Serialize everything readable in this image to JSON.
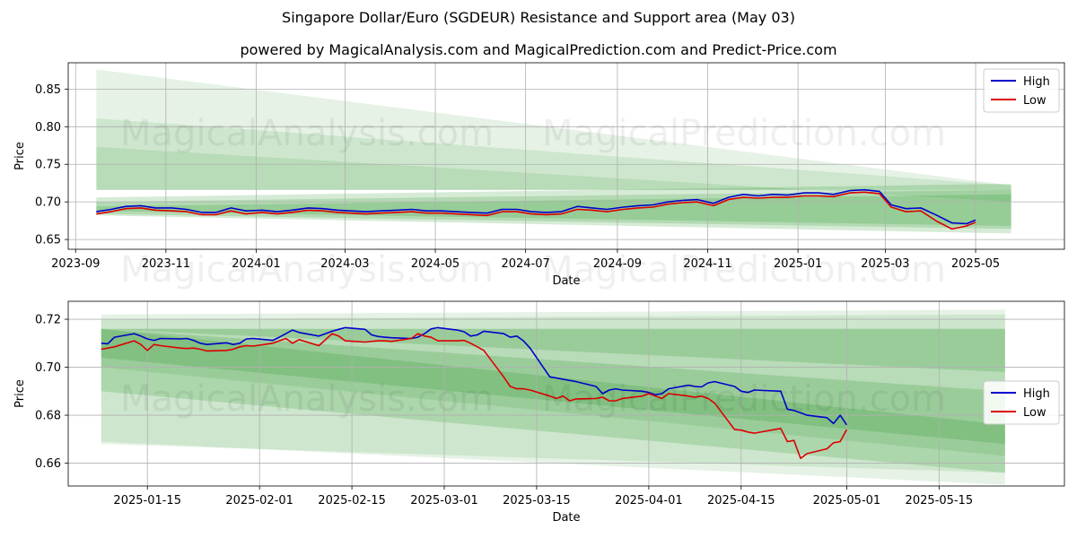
{
  "header": {
    "title": "Singapore Dollar/Euro (SGDEUR) Resistance and Support area (May 03)",
    "subtitle": "powered by MagicalAnalysis.com and MagicalPrediction.com and Predict-Price.com"
  },
  "watermarks": [
    "MagicalAnalysis.com",
    "MagicalPrediction.com"
  ],
  "colors": {
    "high": "#0000cc",
    "low": "#dd0000",
    "band": "#008000"
  },
  "chart_data": [
    {
      "type": "line",
      "xlabel": "Date",
      "ylabel": "Price",
      "x_range": [
        "2023-08-27",
        "2025-06-30"
      ],
      "ylim": [
        0.637,
        0.885
      ],
      "x_ticks": [
        "2023-09",
        "2023-11",
        "2024-01",
        "2024-03",
        "2024-05",
        "2024-07",
        "2024-09",
        "2024-11",
        "2025-01",
        "2025-03",
        "2025-05"
      ],
      "y_ticks": [
        0.65,
        0.7,
        0.75,
        0.8,
        0.85
      ],
      "grid": true,
      "legend": {
        "position": "top-right",
        "entries": [
          "High",
          "Low"
        ]
      },
      "bands": [
        {
          "x": [
            "2023-09-15",
            "2025-05-25"
          ],
          "y_top": [
            0.876,
            0.722
          ],
          "y_bottom": [
            0.716,
            0.716
          ]
        },
        {
          "x": [
            "2023-09-15",
            "2025-05-25"
          ],
          "y_top": [
            0.811,
            0.722
          ],
          "y_bottom": [
            0.716,
            0.716
          ]
        },
        {
          "x": [
            "2023-09-15",
            "2025-05-25"
          ],
          "y_top": [
            0.773,
            0.7
          ],
          "y_bottom": [
            0.716,
            0.716
          ]
        },
        {
          "x": [
            "2023-09-15",
            "2025-05-25"
          ],
          "y_top": [
            0.706,
            0.724
          ],
          "y_bottom": [
            0.682,
            0.658
          ]
        },
        {
          "x": [
            "2023-09-15",
            "2025-05-25"
          ],
          "y_top": [
            0.7,
            0.716
          ],
          "y_bottom": [
            0.684,
            0.664
          ]
        },
        {
          "x": [
            "2023-09-15",
            "2025-05-25"
          ],
          "y_top": [
            0.694,
            0.71
          ],
          "y_bottom": [
            0.688,
            0.668
          ]
        }
      ],
      "series": [
        {
          "name": "High",
          "x": [
            "2023-09-15",
            "2023-09-25",
            "2023-10-05",
            "2023-10-15",
            "2023-10-25",
            "2023-11-05",
            "2023-11-15",
            "2023-11-25",
            "2023-12-05",
            "2023-12-15",
            "2023-12-25",
            "2024-01-05",
            "2024-01-15",
            "2024-01-25",
            "2024-02-05",
            "2024-02-15",
            "2024-02-25",
            "2024-03-05",
            "2024-03-15",
            "2024-03-25",
            "2024-04-05",
            "2024-04-15",
            "2024-04-25",
            "2024-05-05",
            "2024-05-15",
            "2024-05-25",
            "2024-06-05",
            "2024-06-15",
            "2024-06-25",
            "2024-07-05",
            "2024-07-15",
            "2024-07-25",
            "2024-08-05",
            "2024-08-15",
            "2024-08-25",
            "2024-09-05",
            "2024-09-15",
            "2024-09-25",
            "2024-10-05",
            "2024-10-15",
            "2024-10-25",
            "2024-11-05",
            "2024-11-15",
            "2024-11-25",
            "2024-12-05",
            "2024-12-15",
            "2024-12-25",
            "2025-01-05",
            "2025-01-15",
            "2025-01-25",
            "2025-02-05",
            "2025-02-15",
            "2025-02-25",
            "2025-03-05",
            "2025-03-15",
            "2025-03-25",
            "2025-04-05",
            "2025-04-15",
            "2025-04-25",
            "2025-05-01"
          ],
          "values": [
            0.687,
            0.69,
            0.694,
            0.695,
            0.692,
            0.692,
            0.69,
            0.686,
            0.686,
            0.692,
            0.688,
            0.689,
            0.687,
            0.689,
            0.692,
            0.691,
            0.689,
            0.688,
            0.687,
            0.688,
            0.689,
            0.69,
            0.688,
            0.688,
            0.687,
            0.686,
            0.685,
            0.69,
            0.69,
            0.687,
            0.686,
            0.687,
            0.694,
            0.692,
            0.69,
            0.693,
            0.695,
            0.696,
            0.7,
            0.702,
            0.703,
            0.698,
            0.706,
            0.71,
            0.708,
            0.71,
            0.709,
            0.712,
            0.712,
            0.71,
            0.715,
            0.716,
            0.714,
            0.696,
            0.691,
            0.692,
            0.682,
            0.672,
            0.671,
            0.676
          ]
        },
        {
          "name": "Low",
          "x": [
            "2023-09-15",
            "2023-09-25",
            "2023-10-05",
            "2023-10-15",
            "2023-10-25",
            "2023-11-05",
            "2023-11-15",
            "2023-11-25",
            "2023-12-05",
            "2023-12-15",
            "2023-12-25",
            "2024-01-05",
            "2024-01-15",
            "2024-01-25",
            "2024-02-05",
            "2024-02-15",
            "2024-02-25",
            "2024-03-05",
            "2024-03-15",
            "2024-03-25",
            "2024-04-05",
            "2024-04-15",
            "2024-04-25",
            "2024-05-05",
            "2024-05-15",
            "2024-05-25",
            "2024-06-05",
            "2024-06-15",
            "2024-06-25",
            "2024-07-05",
            "2024-07-15",
            "2024-07-25",
            "2024-08-05",
            "2024-08-15",
            "2024-08-25",
            "2024-09-05",
            "2024-09-15",
            "2024-09-25",
            "2024-10-05",
            "2024-10-15",
            "2024-10-25",
            "2024-11-05",
            "2024-11-15",
            "2024-11-25",
            "2024-12-05",
            "2024-12-15",
            "2024-12-25",
            "2025-01-05",
            "2025-01-15",
            "2025-01-25",
            "2025-02-05",
            "2025-02-15",
            "2025-02-25",
            "2025-03-05",
            "2025-03-15",
            "2025-03-25",
            "2025-04-05",
            "2025-04-15",
            "2025-04-25",
            "2025-05-01"
          ],
          "values": [
            0.684,
            0.687,
            0.691,
            0.692,
            0.689,
            0.688,
            0.687,
            0.683,
            0.683,
            0.688,
            0.684,
            0.686,
            0.684,
            0.686,
            0.689,
            0.688,
            0.686,
            0.685,
            0.684,
            0.685,
            0.686,
            0.687,
            0.685,
            0.685,
            0.684,
            0.683,
            0.682,
            0.687,
            0.687,
            0.684,
            0.683,
            0.684,
            0.69,
            0.689,
            0.687,
            0.69,
            0.692,
            0.693,
            0.697,
            0.699,
            0.7,
            0.695,
            0.703,
            0.706,
            0.705,
            0.706,
            0.706,
            0.708,
            0.708,
            0.707,
            0.712,
            0.713,
            0.711,
            0.693,
            0.687,
            0.688,
            0.674,
            0.664,
            0.668,
            0.673
          ]
        }
      ]
    },
    {
      "type": "line",
      "xlabel": "Date",
      "ylabel": "Price",
      "x_range": [
        "2025-01-03",
        "2025-06-03"
      ],
      "ylim": [
        0.6505,
        0.7275
      ],
      "x_ticks": [
        "2025-01-15",
        "2025-02-01",
        "2025-02-15",
        "2025-03-01",
        "2025-03-15",
        "2025-04-01",
        "2025-04-15",
        "2025-05-01",
        "2025-05-15"
      ],
      "y_ticks": [
        0.66,
        0.68,
        0.7,
        0.72
      ],
      "grid": true,
      "legend": {
        "position": "center-right",
        "entries": [
          "High",
          "Low"
        ]
      },
      "bands": [
        {
          "x": [
            "2025-01-08",
            "2025-05-25"
          ],
          "y_top": [
            0.722,
            0.724
          ],
          "y_bottom": [
            0.668,
            0.656
          ]
        },
        {
          "x": [
            "2025-01-08",
            "2025-05-25"
          ],
          "y_top": [
            0.72,
            0.722
          ],
          "y_bottom": [
            0.669,
            0.651
          ]
        },
        {
          "x": [
            "2025-01-08",
            "2025-05-25"
          ],
          "y_top": [
            0.716,
            0.716
          ],
          "y_bottom": [
            0.7,
            0.663
          ]
        },
        {
          "x": [
            "2025-01-08",
            "2025-05-25"
          ],
          "y_top": [
            0.716,
            0.716
          ],
          "y_bottom": [
            0.716,
            0.698
          ]
        },
        {
          "x": [
            "2025-01-08",
            "2025-05-25"
          ],
          "y_top": [
            0.716,
            0.676
          ],
          "y_bottom": [
            0.69,
            0.656
          ]
        },
        {
          "x": [
            "2025-01-08",
            "2025-05-25"
          ],
          "y_top": [
            0.716,
            0.69
          ],
          "y_bottom": [
            0.704,
            0.668
          ]
        }
      ],
      "series": [
        {
          "name": "High",
          "x": [
            "2025-01-08",
            "2025-01-09",
            "2025-01-10",
            "2025-01-13",
            "2025-01-14",
            "2025-01-15",
            "2025-01-16",
            "2025-01-17",
            "2025-01-20",
            "2025-01-21",
            "2025-01-22",
            "2025-01-23",
            "2025-01-24",
            "2025-01-27",
            "2025-01-28",
            "2025-01-29",
            "2025-01-30",
            "2025-01-31",
            "2025-02-03",
            "2025-02-04",
            "2025-02-05",
            "2025-02-06",
            "2025-02-07",
            "2025-02-10",
            "2025-02-11",
            "2025-02-12",
            "2025-02-13",
            "2025-02-14",
            "2025-02-17",
            "2025-02-18",
            "2025-02-19",
            "2025-02-20",
            "2025-02-21",
            "2025-02-24",
            "2025-02-25",
            "2025-02-26",
            "2025-02-27",
            "2025-02-28",
            "2025-03-03",
            "2025-03-04",
            "2025-03-05",
            "2025-03-06",
            "2025-03-07",
            "2025-03-10",
            "2025-03-11",
            "2025-03-12",
            "2025-03-13",
            "2025-03-14",
            "2025-03-17",
            "2025-03-18",
            "2025-03-19",
            "2025-03-20",
            "2025-03-21",
            "2025-03-24",
            "2025-03-25",
            "2025-03-26",
            "2025-03-27",
            "2025-03-28",
            "2025-03-31",
            "2025-04-01",
            "2025-04-02",
            "2025-04-03",
            "2025-04-04",
            "2025-04-07",
            "2025-04-08",
            "2025-04-09",
            "2025-04-10",
            "2025-04-11",
            "2025-04-14",
            "2025-04-15",
            "2025-04-16",
            "2025-04-17",
            "2025-04-21",
            "2025-04-22",
            "2025-04-23",
            "2025-04-24",
            "2025-04-25",
            "2025-04-28",
            "2025-04-29",
            "2025-04-30",
            "2025-05-01"
          ],
          "values": [
            0.71,
            0.7098,
            0.7125,
            0.714,
            0.713,
            0.7118,
            0.7112,
            0.712,
            0.7118,
            0.712,
            0.7112,
            0.71,
            0.7095,
            0.7102,
            0.7095,
            0.71,
            0.7118,
            0.712,
            0.7112,
            0.7125,
            0.714,
            0.7155,
            0.7145,
            0.713,
            0.714,
            0.715,
            0.7158,
            0.7165,
            0.7158,
            0.7135,
            0.7128,
            0.7125,
            0.7123,
            0.712,
            0.7125,
            0.714,
            0.716,
            0.7165,
            0.7155,
            0.7148,
            0.713,
            0.7135,
            0.715,
            0.714,
            0.7125,
            0.713,
            0.711,
            0.708,
            0.696,
            0.6955,
            0.695,
            0.6945,
            0.694,
            0.692,
            0.689,
            0.6905,
            0.691,
            0.6905,
            0.69,
            0.6895,
            0.6885,
            0.689,
            0.691,
            0.6925,
            0.692,
            0.6918,
            0.6935,
            0.694,
            0.692,
            0.69,
            0.6895,
            0.6905,
            0.69,
            0.6825,
            0.682,
            0.681,
            0.68,
            0.679,
            0.6765,
            0.68,
            0.676
          ]
        },
        {
          "name": "Low",
          "x": [
            "2025-01-08",
            "2025-01-09",
            "2025-01-10",
            "2025-01-13",
            "2025-01-14",
            "2025-01-15",
            "2025-01-16",
            "2025-01-17",
            "2025-01-20",
            "2025-01-21",
            "2025-01-22",
            "2025-01-23",
            "2025-01-24",
            "2025-01-27",
            "2025-01-28",
            "2025-01-29",
            "2025-01-30",
            "2025-01-31",
            "2025-02-03",
            "2025-02-04",
            "2025-02-05",
            "2025-02-06",
            "2025-02-07",
            "2025-02-10",
            "2025-02-11",
            "2025-02-12",
            "2025-02-13",
            "2025-02-14",
            "2025-02-17",
            "2025-02-18",
            "2025-02-19",
            "2025-02-20",
            "2025-02-21",
            "2025-02-24",
            "2025-02-25",
            "2025-02-26",
            "2025-02-27",
            "2025-02-28",
            "2025-03-03",
            "2025-03-04",
            "2025-03-05",
            "2025-03-06",
            "2025-03-07",
            "2025-03-10",
            "2025-03-11",
            "2025-03-12",
            "2025-03-13",
            "2025-03-14",
            "2025-03-17",
            "2025-03-18",
            "2025-03-19",
            "2025-03-20",
            "2025-03-21",
            "2025-03-24",
            "2025-03-25",
            "2025-03-26",
            "2025-03-27",
            "2025-03-28",
            "2025-03-31",
            "2025-04-01",
            "2025-04-02",
            "2025-04-03",
            "2025-04-04",
            "2025-04-07",
            "2025-04-08",
            "2025-04-09",
            "2025-04-10",
            "2025-04-11",
            "2025-04-14",
            "2025-04-15",
            "2025-04-16",
            "2025-04-17",
            "2025-04-21",
            "2025-04-22",
            "2025-04-23",
            "2025-04-24",
            "2025-04-25",
            "2025-04-28",
            "2025-04-29",
            "2025-04-30",
            "2025-05-01"
          ],
          "values": [
            0.7075,
            0.708,
            0.7085,
            0.711,
            0.7095,
            0.707,
            0.7095,
            0.709,
            0.708,
            0.7078,
            0.708,
            0.7075,
            0.7068,
            0.707,
            0.7075,
            0.7085,
            0.709,
            0.7088,
            0.71,
            0.711,
            0.712,
            0.71,
            0.7115,
            0.709,
            0.7115,
            0.714,
            0.713,
            0.711,
            0.7105,
            0.7108,
            0.711,
            0.711,
            0.7108,
            0.712,
            0.714,
            0.713,
            0.7125,
            0.711,
            0.711,
            0.7112,
            0.71,
            0.7085,
            0.707,
            0.696,
            0.692,
            0.691,
            0.691,
            0.6905,
            0.688,
            0.687,
            0.688,
            0.686,
            0.6868,
            0.687,
            0.6875,
            0.686,
            0.686,
            0.687,
            0.688,
            0.689,
            0.688,
            0.687,
            0.689,
            0.688,
            0.6875,
            0.688,
            0.687,
            0.685,
            0.674,
            0.6738,
            0.673,
            0.6725,
            0.6745,
            0.669,
            0.6695,
            0.662,
            0.664,
            0.666,
            0.6685,
            0.669,
            0.674
          ]
        }
      ]
    }
  ]
}
